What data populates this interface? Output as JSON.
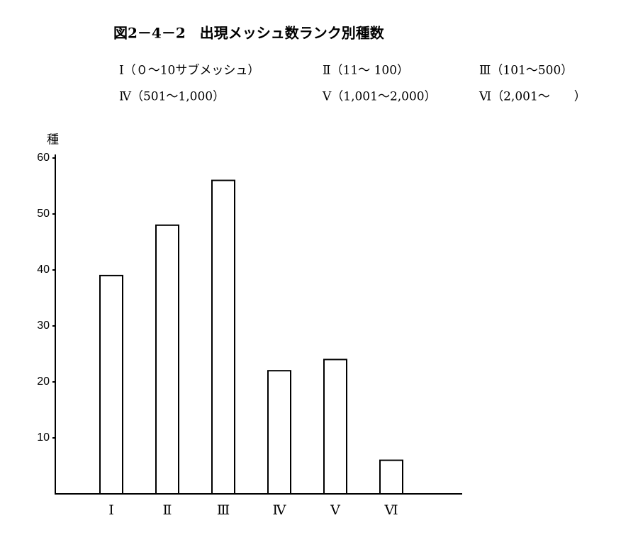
{
  "chart_data": {
    "type": "bar",
    "title": "図2－4－2　出現メッシュ数ランク別種数",
    "notes": [
      "Ⅰ（０～10サブメッシュ）",
      "Ⅱ（11～ 100）",
      "Ⅲ（101～500）",
      "Ⅳ（501～1,000）",
      "Ⅴ（1,001～2,000）",
      "Ⅵ（2,001～　　）"
    ],
    "y_label": "種",
    "categories": [
      "Ⅰ",
      "Ⅱ",
      "Ⅲ",
      "Ⅳ",
      "Ⅴ",
      "Ⅵ"
    ],
    "values": [
      39,
      48,
      56,
      22,
      24,
      6
    ],
    "color": "#ffffff",
    "ylim": [
      0,
      60
    ],
    "yticks": [
      10,
      20,
      30,
      40,
      50,
      60
    ],
    "grid": false
  }
}
